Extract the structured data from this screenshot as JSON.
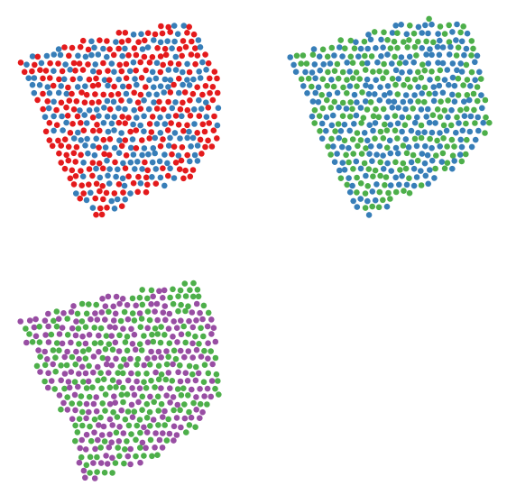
{
  "chart_data": [
    {
      "type": "scatter",
      "title": "",
      "xlabel": "",
      "ylabel": "",
      "axes_visible": false,
      "grid": false,
      "legend": "none",
      "series": [
        {
          "color": "#e41a1c",
          "point_count": 300
        },
        {
          "color": "#377eb8",
          "point_count": 300
        }
      ]
    },
    {
      "type": "scatter",
      "title": "",
      "xlabel": "",
      "ylabel": "",
      "axes_visible": false,
      "grid": false,
      "legend": "none",
      "series": [
        {
          "color": "#4daf4a",
          "point_count": 300
        },
        {
          "color": "#377eb8",
          "point_count": 300
        }
      ]
    },
    {
      "type": "scatter",
      "title": "",
      "xlabel": "",
      "ylabel": "",
      "axes_visible": false,
      "grid": false,
      "legend": "none",
      "series": [
        {
          "color": "#984ea3",
          "point_count": 300
        },
        {
          "color": "#4daf4a",
          "point_count": 300
        }
      ]
    }
  ]
}
